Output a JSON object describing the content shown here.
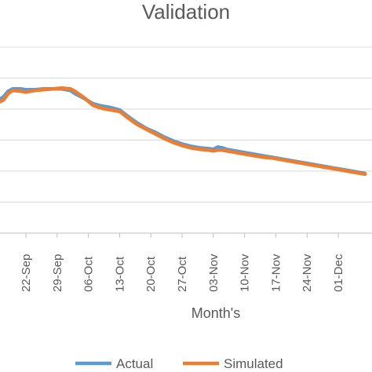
{
  "chart_data": {
    "type": "line",
    "title": "Validation",
    "xlabel": "Month's",
    "ylabel": "",
    "x_ticks": [
      "22-Sep",
      "29-Sep",
      "06-Oct",
      "13-Oct",
      "20-Oct",
      "27-Oct",
      "03-Nov",
      "10-Nov",
      "17-Nov",
      "24-Nov",
      "01-Dec"
    ],
    "first_tick_day": 21,
    "last_tick_day": 91,
    "x_range_days": [
      15,
      97
    ],
    "ylim": [
      0,
      12
    ],
    "gridlines": [
      2,
      4,
      6,
      8,
      10,
      12
    ],
    "grid": true,
    "legend_position": "bottom",
    "series": [
      {
        "name": "Actual",
        "color": "#5B9BD5",
        "points": [
          [
            15,
            8.6
          ],
          [
            16,
            8.8
          ],
          [
            17,
            9.15
          ],
          [
            18,
            9.3
          ],
          [
            20,
            9.3
          ],
          [
            21,
            9.25
          ],
          [
            23,
            9.25
          ],
          [
            25,
            9.3
          ],
          [
            27,
            9.3
          ],
          [
            29,
            9.3
          ],
          [
            31,
            9.2
          ],
          [
            32,
            9.0
          ],
          [
            34,
            8.7
          ],
          [
            36,
            8.35
          ],
          [
            38,
            8.2
          ],
          [
            40,
            8.1
          ],
          [
            42,
            7.95
          ],
          [
            44,
            7.5
          ],
          [
            46,
            7.1
          ],
          [
            48,
            6.75
          ],
          [
            50,
            6.5
          ],
          [
            52,
            6.2
          ],
          [
            54,
            5.95
          ],
          [
            56,
            5.75
          ],
          [
            58,
            5.6
          ],
          [
            60,
            5.5
          ],
          [
            62,
            5.45
          ],
          [
            63,
            5.4
          ],
          [
            64,
            5.55
          ],
          [
            65,
            5.5
          ],
          [
            66,
            5.4
          ],
          [
            68,
            5.3
          ],
          [
            70,
            5.2
          ],
          [
            72,
            5.1
          ],
          [
            74,
            5.0
          ],
          [
            76,
            4.9
          ],
          [
            78,
            4.8
          ],
          [
            80,
            4.7
          ],
          [
            82,
            4.6
          ],
          [
            84,
            4.5
          ],
          [
            86,
            4.4
          ],
          [
            88,
            4.3
          ],
          [
            90,
            4.2
          ],
          [
            92,
            4.1
          ],
          [
            94,
            4.0
          ],
          [
            97,
            3.85
          ]
        ]
      },
      {
        "name": "Simulated",
        "color": "#ED7D31",
        "points": [
          [
            15,
            8.45
          ],
          [
            16,
            8.6
          ],
          [
            17,
            9.0
          ],
          [
            18,
            9.2
          ],
          [
            20,
            9.15
          ],
          [
            21,
            9.1
          ],
          [
            23,
            9.2
          ],
          [
            25,
            9.25
          ],
          [
            27,
            9.3
          ],
          [
            29,
            9.35
          ],
          [
            31,
            9.3
          ],
          [
            32,
            9.15
          ],
          [
            34,
            8.75
          ],
          [
            36,
            8.25
          ],
          [
            38,
            8.05
          ],
          [
            40,
            7.95
          ],
          [
            42,
            7.85
          ],
          [
            44,
            7.4
          ],
          [
            46,
            7.0
          ],
          [
            48,
            6.7
          ],
          [
            50,
            6.4
          ],
          [
            52,
            6.1
          ],
          [
            54,
            5.85
          ],
          [
            56,
            5.65
          ],
          [
            58,
            5.5
          ],
          [
            60,
            5.4
          ],
          [
            62,
            5.35
          ],
          [
            63,
            5.3
          ],
          [
            64,
            5.35
          ],
          [
            65,
            5.35
          ],
          [
            66,
            5.3
          ],
          [
            68,
            5.2
          ],
          [
            70,
            5.1
          ],
          [
            72,
            5.0
          ],
          [
            74,
            4.9
          ],
          [
            76,
            4.85
          ],
          [
            78,
            4.75
          ],
          [
            80,
            4.65
          ],
          [
            82,
            4.55
          ],
          [
            84,
            4.45
          ],
          [
            86,
            4.35
          ],
          [
            88,
            4.25
          ],
          [
            90,
            4.15
          ],
          [
            92,
            4.05
          ],
          [
            94,
            3.95
          ],
          [
            97,
            3.8
          ]
        ]
      }
    ]
  }
}
